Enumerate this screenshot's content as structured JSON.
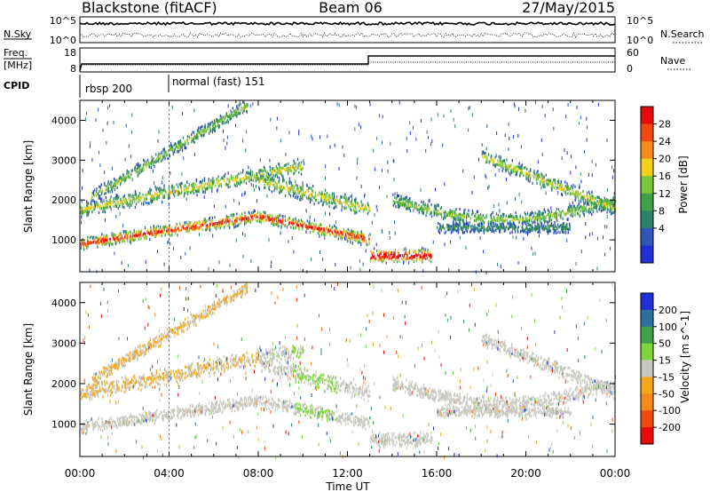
{
  "header": {
    "station": "Blackstone (fitACF)",
    "beam": "Beam 06",
    "date": "27/May/2015"
  },
  "sky_panel": {
    "left_label": "N.Sky",
    "right_label": "N.Search",
    "left_ticks": [
      "10^5",
      "10^0"
    ],
    "right_ticks": [
      "10^5",
      "10^0"
    ]
  },
  "freq_panel": {
    "left_label_line1": "Freq.",
    "left_label_line2": "[MHz]",
    "right_label": "Nave",
    "left_ticks": [
      "18",
      "8"
    ],
    "right_ticks": [
      "60",
      "0"
    ]
  },
  "cpid_panel": {
    "label": "CPID",
    "modes": [
      "rbsp 200",
      "normal (fast) 151"
    ]
  },
  "chart_data": [
    {
      "type": "heatmap",
      "quantity": "Power",
      "ylabel": "Slant Range [km]",
      "xlabel": "Time UT",
      "colorbar_label": "Power [dB]",
      "x_range": [
        "00:00",
        "00:00"
      ],
      "ylim": [
        200,
        4500
      ],
      "x_ticks": [
        "00:00",
        "04:00",
        "08:00",
        "12:00",
        "16:00",
        "20:00",
        "00:00"
      ],
      "y_ticks": [
        1000,
        2000,
        3000,
        4000
      ],
      "colorbar_ticks": [
        4,
        8,
        12,
        16,
        20,
        24,
        28
      ],
      "colorbar_colors": [
        "#1f2fd6",
        "#2f55b8",
        "#2f7f6a",
        "#3f9f4a",
        "#7cc43a",
        "#f3cf1a",
        "#f58a1a",
        "#f04a10",
        "#e60a0a"
      ]
    },
    {
      "type": "heatmap",
      "quantity": "Velocity",
      "ylabel": "Slant Range [km]",
      "xlabel": "Time UT",
      "colorbar_label": "Velocity [m s^-1]",
      "x_range": [
        "00:00",
        "00:00"
      ],
      "ylim": [
        200,
        4500
      ],
      "x_ticks": [
        "00:00",
        "04:00",
        "08:00",
        "12:00",
        "16:00",
        "20:00",
        "00:00"
      ],
      "y_ticks": [
        1000,
        2000,
        3000,
        4000
      ],
      "colorbar_ticks": [
        200,
        100,
        50,
        15,
        -15,
        -50,
        -100,
        -200
      ],
      "colorbar_colors": [
        "#1f2fd6",
        "#2f6fa0",
        "#3f9f4a",
        "#7cd63a",
        "#c8c8c0",
        "#f3a81a",
        "#f58a1a",
        "#f04a10",
        "#e60a0a"
      ]
    }
  ],
  "bottom": {
    "xlabel": "Time UT"
  }
}
